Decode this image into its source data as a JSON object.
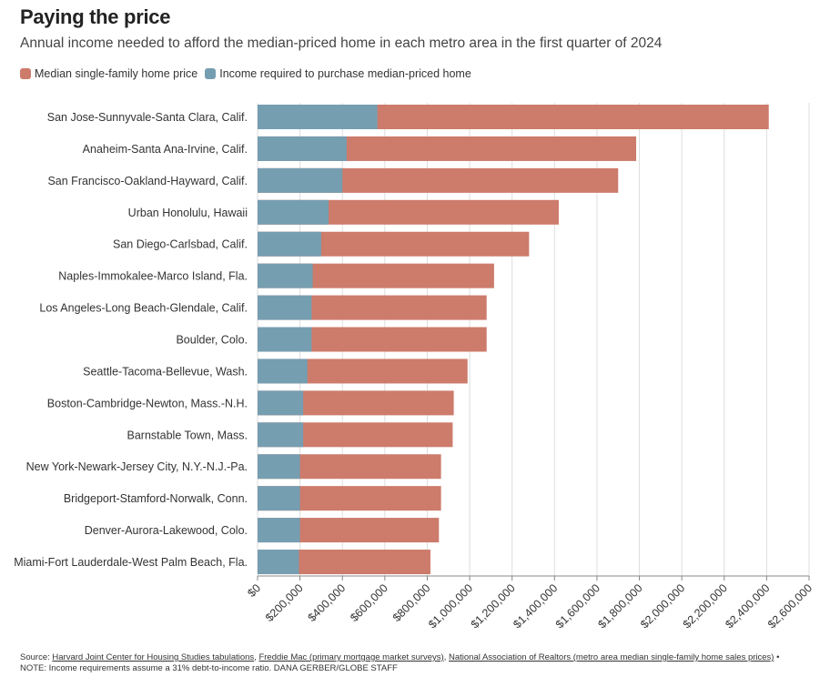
{
  "title": "Paying the price",
  "subtitle": "Annual income needed to afford the median-priced home in each metro area in the first quarter of 2024",
  "legend": [
    {
      "label": "Median single-family home price",
      "color": "#cd7b6b"
    },
    {
      "label": "Income required to purchase median-priced home",
      "color": "#769eb1"
    }
  ],
  "footer": {
    "source_prefix": "Source:",
    "sources": [
      "Harvard Joint Center for Housing Studies tabulations",
      "Freddie Mac (primary mortgage market surveys)",
      "National Association of Realtors (metro area median single-family home sales prices)"
    ],
    "separators": [
      ", ",
      ", ",
      " •"
    ],
    "note": "NOTE: Income requirements assume a 31% debt-to-income ratio. DANA GERBER/GLOBE STAFF"
  },
  "chart_data": {
    "type": "bar",
    "orientation": "horizontal",
    "stacked": false,
    "overlay": true,
    "categories": [
      "San Jose-Sunnyvale-Santa Clara, Calif.",
      "Anaheim-Santa Ana-Irvine, Calif.",
      "San Francisco-Oakland-Hayward, Calif.",
      "Urban Honolulu, Hawaii",
      "San Diego-Carlsbad, Calif.",
      "Naples-Immokalee-Marco Island, Fla.",
      "Los Angeles-Long Beach-Glendale, Calif.",
      "Boulder, Colo.",
      "Seattle-Tacoma-Bellevue, Wash.",
      "Boston-Cambridge-Newton, Mass.-N.H.",
      "Barnstable Town, Mass.",
      "New York-Newark-Jersey City, N.Y.-N.J.-Pa.",
      "Bridgeport-Stamford-Norwalk, Conn.",
      "Denver-Aurora-Lakewood, Colo.",
      "Miami-Fort Lauderdale-West Palm Beach, Fla."
    ],
    "series": [
      {
        "name": "Median single-family home price",
        "color": "#cd7b6b",
        "values": [
          2410000,
          1785000,
          1700000,
          1420000,
          1280000,
          1115000,
          1080000,
          1080000,
          990000,
          925000,
          920000,
          865000,
          865000,
          855000,
          815000
        ]
      },
      {
        "name": "Income required to purchase median-priced home",
        "color": "#769eb1",
        "values": [
          565000,
          420000,
          400000,
          335000,
          300000,
          260000,
          255000,
          255000,
          235000,
          215000,
          215000,
          200000,
          200000,
          200000,
          195000
        ]
      }
    ],
    "xlim": [
      0,
      2600000
    ],
    "xticks": [
      0,
      200000,
      400000,
      600000,
      800000,
      1000000,
      1200000,
      1400000,
      1600000,
      1800000,
      2000000,
      2200000,
      2400000,
      2600000
    ],
    "xtick_labels": [
      "$0",
      "$200,000",
      "$400,000",
      "$600,000",
      "$800,000",
      "$1,000,000",
      "$1,200,000",
      "$1,400,000",
      "$1,600,000",
      "$1,800,000",
      "$2,000,000",
      "$2,200,000",
      "$2,400,000",
      "$2,600,000"
    ],
    "grid": true,
    "grid_axis": "x",
    "legend_placement": "top-left"
  }
}
